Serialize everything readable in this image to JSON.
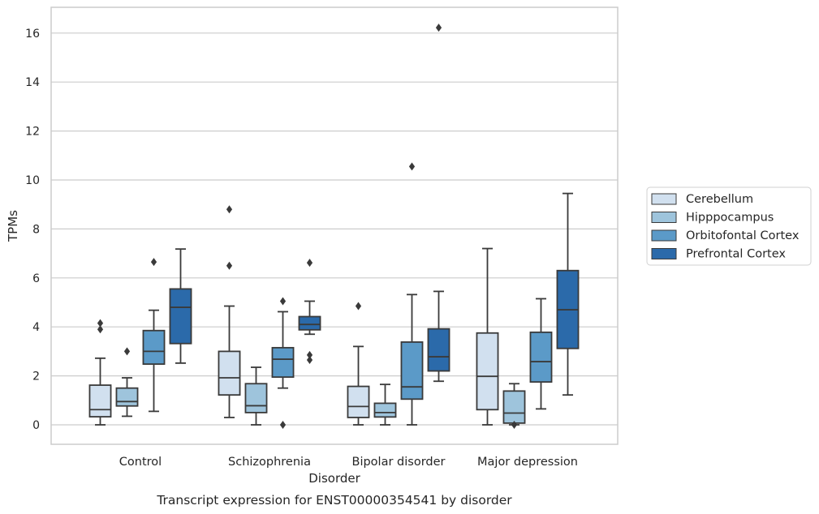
{
  "chart_data": {
    "type": "box",
    "title": "Transcript expression for ENST00000354541 by disorder",
    "xlabel": "Disorder",
    "ylabel": "TPMs",
    "ylim": [
      -0.8,
      17.0
    ],
    "yticks": [
      0,
      2,
      4,
      6,
      8,
      10,
      12,
      14,
      16
    ],
    "ytick_labels": [
      "0",
      "2",
      "4",
      "6",
      "8",
      "10",
      "12",
      "14",
      "16"
    ],
    "grid": true,
    "legend_position": "right",
    "categories": [
      "Control",
      "Schizophrenia",
      "Bipolar disorder",
      "Major depression"
    ],
    "series": [
      {
        "name": "Cerebellum",
        "color": "#d1e0ef",
        "boxes": [
          {
            "whislo": 0.0,
            "q1": 0.33,
            "med": 0.62,
            "q3": 1.62,
            "whishi": 2.72,
            "fliers": [
              3.9,
              4.15
            ]
          },
          {
            "whislo": 0.3,
            "q1": 1.22,
            "med": 1.92,
            "q3": 3.0,
            "whishi": 4.85,
            "fliers": [
              6.5,
              8.8
            ]
          },
          {
            "whislo": 0.0,
            "q1": 0.3,
            "med": 0.75,
            "q3": 1.57,
            "whishi": 3.2,
            "fliers": [
              4.85
            ]
          },
          {
            "whislo": 0.0,
            "q1": 0.62,
            "med": 1.98,
            "q3": 3.75,
            "whishi": 7.2,
            "fliers": []
          }
        ]
      },
      {
        "name": "Hipppocampus",
        "color": "#9ec4dc",
        "boxes": [
          {
            "whislo": 0.35,
            "q1": 0.77,
            "med": 0.95,
            "q3": 1.5,
            "whishi": 1.92,
            "fliers": [
              3.0
            ]
          },
          {
            "whislo": 0.0,
            "q1": 0.5,
            "med": 0.78,
            "q3": 1.68,
            "whishi": 2.35,
            "fliers": []
          },
          {
            "whislo": 0.0,
            "q1": 0.32,
            "med": 0.5,
            "q3": 0.88,
            "whishi": 1.65,
            "fliers": []
          },
          {
            "whislo": 0.0,
            "q1": 0.07,
            "med": 0.48,
            "q3": 1.38,
            "whishi": 1.68,
            "fliers": [
              0.0
            ]
          }
        ]
      },
      {
        "name": "Orbitofontal Cortex",
        "color": "#5b9ac8",
        "boxes": [
          {
            "whislo": 0.55,
            "q1": 2.48,
            "med": 3.0,
            "q3": 3.85,
            "whishi": 4.68,
            "fliers": [
              6.65
            ]
          },
          {
            "whislo": 1.5,
            "q1": 1.95,
            "med": 2.68,
            "q3": 3.15,
            "whishi": 4.62,
            "fliers": [
              0.0,
              5.05
            ]
          },
          {
            "whislo": 0.0,
            "q1": 1.05,
            "med": 1.55,
            "q3": 3.38,
            "whishi": 5.32,
            "fliers": [
              10.55
            ]
          },
          {
            "whislo": 0.65,
            "q1": 1.75,
            "med": 2.58,
            "q3": 3.78,
            "whishi": 5.15,
            "fliers": []
          }
        ]
      },
      {
        "name": "Prefrontal Cortex",
        "color": "#2b6aaa",
        "boxes": [
          {
            "whislo": 2.52,
            "q1": 3.32,
            "med": 4.8,
            "q3": 5.55,
            "whishi": 7.18,
            "fliers": []
          },
          {
            "whislo": 3.7,
            "q1": 3.88,
            "med": 4.1,
            "q3": 4.42,
            "whishi": 5.05,
            "fliers": [
              2.65,
              2.85,
              6.62
            ]
          },
          {
            "whislo": 1.78,
            "q1": 2.2,
            "med": 2.78,
            "q3": 3.92,
            "whishi": 5.45,
            "fliers": [
              16.22
            ]
          },
          {
            "whislo": 1.22,
            "q1": 3.12,
            "med": 4.7,
            "q3": 6.3,
            "whishi": 9.45,
            "fliers": []
          }
        ]
      }
    ]
  }
}
